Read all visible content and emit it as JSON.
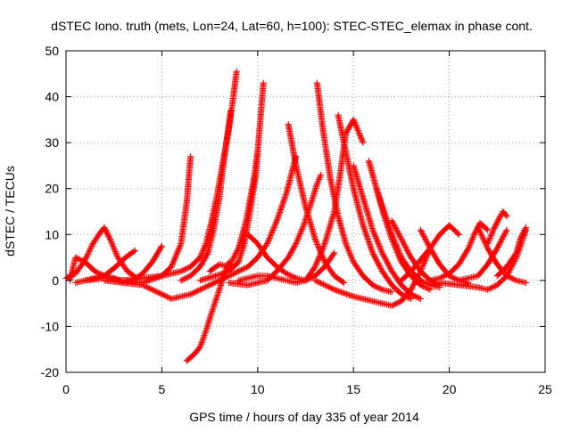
{
  "chart_data": {
    "type": "scatter",
    "title": "dSTEC Iono. truth (mets, Lon=24, Lat=60, h=100): STEC-STEC_elemax in phase cont.",
    "xlabel": "GPS time / hours of day 335 of year 2014",
    "ylabel": "dSTEC  / TECUs",
    "xlim": [
      0,
      25
    ],
    "ylim": [
      -20,
      50
    ],
    "xticks": [
      0,
      5,
      10,
      15,
      20,
      25
    ],
    "yticks": [
      -20,
      -10,
      0,
      10,
      20,
      30,
      40,
      50
    ],
    "grid": true,
    "marker": "plus",
    "marker_color": "#ff0000",
    "series": [
      {
        "x": [
          0.0,
          0.5,
          1.0,
          1.4,
          1.8,
          2.0,
          2.3,
          2.7,
          3.2,
          3.7
        ],
        "y": [
          0.5,
          1.5,
          4.5,
          8.0,
          10.5,
          11.5,
          9.0,
          5.0,
          2.0,
          0.5
        ]
      },
      {
        "x": [
          0.2,
          0.5,
          1.0,
          1.5,
          2.0,
          2.6,
          3.1,
          3.6
        ],
        "y": [
          0.0,
          5.0,
          4.0,
          2.0,
          1.0,
          3.0,
          5.0,
          6.5
        ]
      },
      {
        "x": [
          0.5,
          1.0,
          1.5,
          2.0,
          2.5,
          3.0,
          3.5,
          4.0,
          4.5,
          5.0
        ],
        "y": [
          -0.5,
          0.0,
          0.5,
          1.0,
          0.5,
          -0.5,
          0.0,
          1.5,
          4.0,
          7.5
        ]
      },
      {
        "x": [
          1.0,
          2.0,
          3.0,
          4.0,
          5.0,
          5.5,
          6.0,
          6.3,
          6.5
        ],
        "y": [
          0.0,
          0.5,
          0.0,
          -0.5,
          1.0,
          3.0,
          8.0,
          17.0,
          27.0
        ]
      },
      {
        "x": [
          2.0,
          3.0,
          4.0,
          4.5,
          5.0,
          5.5,
          6.0,
          6.5,
          7.0,
          7.5,
          8.0
        ],
        "y": [
          0.0,
          -0.5,
          -1.0,
          -2.0,
          -3.0,
          -4.0,
          -3.5,
          -3.0,
          -2.0,
          -1.0,
          0.0
        ]
      },
      {
        "x": [
          6.3,
          6.7,
          7.0,
          7.3,
          7.6,
          8.0,
          8.3,
          8.5
        ],
        "y": [
          -17.5,
          -16.0,
          -14.5,
          -11.0,
          -7.0,
          -2.0,
          2.0,
          4.0
        ]
      },
      {
        "x": [
          3.0,
          4.0,
          5.0,
          6.0,
          6.5,
          7.0,
          7.3,
          7.6,
          7.9,
          8.2,
          8.5,
          8.7,
          8.9
        ],
        "y": [
          0.0,
          0.5,
          1.0,
          2.0,
          3.0,
          5.0,
          8.0,
          13.0,
          19.0,
          26.0,
          33.0,
          39.0,
          45.5
        ]
      },
      {
        "x": [
          6.0,
          6.5,
          7.0,
          7.4,
          7.7,
          8.0,
          8.2,
          8.4,
          8.6
        ],
        "y": [
          0.0,
          1.0,
          3.0,
          6.0,
          11.0,
          18.0,
          25.0,
          31.0,
          37.0
        ]
      },
      {
        "x": [
          7.0,
          7.8,
          8.5,
          9.0,
          9.3,
          9.6,
          9.9,
          10.1,
          10.3
        ],
        "y": [
          0.0,
          1.0,
          2.0,
          4.0,
          8.0,
          15.0,
          23.0,
          33.0,
          43.0
        ]
      },
      {
        "x": [
          7.5,
          8.0,
          8.5,
          9.0,
          9.4,
          9.8,
          10.0
        ],
        "y": [
          2.0,
          3.5,
          3.0,
          7.0,
          13.0,
          22.0,
          28.0
        ]
      },
      {
        "x": [
          8.0,
          8.5,
          9.0,
          9.5,
          10.0,
          10.5,
          11.0,
          11.5,
          12.0
        ],
        "y": [
          0.0,
          1.0,
          2.0,
          3.0,
          5.0,
          8.0,
          13.0,
          19.0,
          27.0
        ]
      },
      {
        "x": [
          8.5,
          9.5,
          10.5,
          11.0,
          11.6,
          12.0,
          12.4,
          12.8,
          13.1,
          13.3
        ],
        "y": [
          -0.5,
          -1.0,
          0.0,
          2.0,
          5.0,
          8.0,
          12.0,
          17.0,
          21.0,
          23.0
        ]
      },
      {
        "x": [
          9.5,
          10.0,
          10.5,
          11.0,
          11.5,
          12.0,
          12.5
        ],
        "y": [
          10.0,
          8.0,
          5.0,
          3.0,
          1.5,
          0.5,
          0.0
        ]
      },
      {
        "x": [
          9.0,
          9.5,
          10.0,
          10.5,
          11.0,
          11.5,
          12.0,
          12.5,
          13.0,
          13.5,
          14.0
        ],
        "y": [
          0.0,
          0.5,
          1.0,
          1.0,
          0.5,
          0.0,
          -0.5,
          0.0,
          1.0,
          3.0,
          6.0
        ]
      },
      {
        "x": [
          11.6,
          12.0,
          12.5,
          13.0,
          13.5,
          14.0,
          14.5
        ],
        "y": [
          34.0,
          25.0,
          16.0,
          9.0,
          4.0,
          1.0,
          -0.5
        ]
      },
      {
        "x": [
          13.1,
          13.4,
          13.8,
          14.2,
          14.6,
          15.0,
          15.5,
          16.0,
          16.5,
          17.0
        ],
        "y": [
          43.0,
          33.0,
          22.0,
          14.0,
          8.0,
          4.0,
          1.0,
          -1.0,
          -2.0,
          -2.5
        ]
      },
      {
        "x": [
          12.5,
          13.0,
          13.5,
          14.0,
          14.3,
          14.6,
          15.0,
          15.5
        ],
        "y": [
          0.0,
          3.0,
          8.0,
          15.0,
          23.0,
          32.0,
          35.0,
          30.0
        ]
      },
      {
        "x": [
          14.2,
          14.6,
          15.0,
          15.5,
          16.0,
          16.5,
          17.0,
          17.5,
          18.0
        ],
        "y": [
          36.0,
          28.0,
          20.0,
          12.0,
          6.0,
          2.0,
          -1.0,
          -3.0,
          -4.0
        ]
      },
      {
        "x": [
          15.0,
          15.5,
          16.0,
          16.5,
          17.0,
          17.5,
          18.0,
          18.5
        ],
        "y": [
          25.0,
          18.0,
          11.0,
          6.0,
          2.0,
          -1.0,
          -3.0,
          -4.0
        ]
      },
      {
        "x": [
          15.8,
          16.2,
          16.6,
          17.0,
          17.5,
          18.0,
          18.5,
          19.0
        ],
        "y": [
          26.0,
          20.0,
          14.0,
          9.0,
          4.0,
          1.0,
          -1.0,
          -2.0
        ]
      },
      {
        "x": [
          16.2,
          16.6,
          17.0,
          17.5,
          18.0,
          18.5,
          19.0,
          19.5
        ],
        "y": [
          20.0,
          15.0,
          10.0,
          5.0,
          2.0,
          0.0,
          -1.0,
          -1.5
        ]
      },
      {
        "x": [
          13.0,
          14.0,
          15.0,
          16.0,
          16.5,
          17.0,
          17.5,
          18.0,
          18.5,
          19.0
        ],
        "y": [
          0.0,
          -2.0,
          -3.5,
          -4.5,
          -5.0,
          -5.5,
          -4.5,
          -2.0,
          2.0,
          7.0
        ]
      },
      {
        "x": [
          17.0,
          17.5,
          18.0,
          18.5,
          19.0,
          19.5
        ],
        "y": [
          13.0,
          9.0,
          5.0,
          2.0,
          0.0,
          -1.0
        ]
      },
      {
        "x": [
          17.5,
          18.0,
          18.5,
          19.0,
          19.5,
          20.0,
          20.5
        ],
        "y": [
          0.0,
          2.0,
          4.5,
          7.0,
          10.0,
          12.0,
          10.0
        ]
      },
      {
        "x": [
          18.5,
          19.0,
          19.5,
          20.0,
          20.5,
          21.0
        ],
        "y": [
          11.0,
          7.0,
          3.5,
          1.0,
          0.0,
          -0.5
        ]
      },
      {
        "x": [
          19.0,
          19.5,
          20.0,
          20.5,
          21.0,
          21.3,
          21.6,
          22.0
        ],
        "y": [
          0.0,
          0.5,
          1.5,
          3.5,
          7.0,
          10.0,
          12.5,
          11.0
        ]
      },
      {
        "x": [
          20.5,
          21.0,
          21.5,
          22.0,
          22.5,
          23.0
        ],
        "y": [
          0.0,
          0.5,
          1.0,
          3.5,
          7.0,
          11.0
        ]
      },
      {
        "x": [
          21.5,
          22.0,
          22.5,
          23.0,
          23.5,
          24.0
        ],
        "y": [
          11.5,
          7.0,
          3.5,
          1.0,
          0.0,
          -0.5
        ]
      },
      {
        "x": [
          19.5,
          20.5,
          21.5,
          22.0,
          22.5,
          23.0,
          23.5,
          24.0
        ],
        "y": [
          -0.5,
          -1.0,
          -1.5,
          -2.0,
          -1.0,
          1.0,
          5.0,
          11.0
        ]
      },
      {
        "x": [
          22.0,
          22.3,
          22.6,
          22.8,
          23.0
        ],
        "y": [
          8.0,
          11.0,
          13.5,
          15.0,
          14.0
        ]
      },
      {
        "x": [
          22.5,
          23.0,
          23.5,
          23.7,
          24.0
        ],
        "y": [
          1.0,
          3.0,
          6.0,
          9.0,
          11.5
        ]
      }
    ]
  }
}
